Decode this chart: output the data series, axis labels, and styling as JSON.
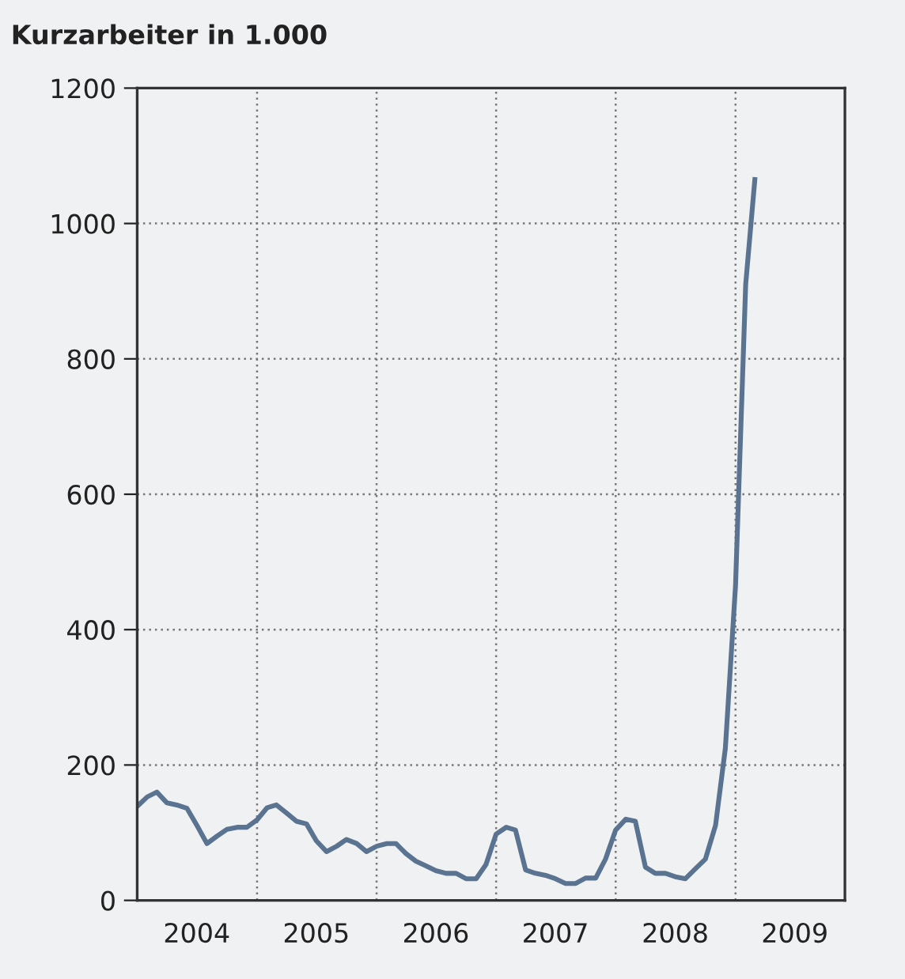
{
  "chart_data": {
    "type": "line",
    "title": "Kurzarbeiter in 1.000",
    "x": [
      "2004-01",
      "2004-02",
      "2004-03",
      "2004-04",
      "2004-05",
      "2004-06",
      "2004-07",
      "2004-08",
      "2004-09",
      "2004-10",
      "2004-11",
      "2004-12",
      "2005-01",
      "2005-02",
      "2005-03",
      "2005-04",
      "2005-05",
      "2005-06",
      "2005-07",
      "2005-08",
      "2005-09",
      "2005-10",
      "2005-11",
      "2005-12",
      "2006-01",
      "2006-02",
      "2006-03",
      "2006-04",
      "2006-05",
      "2006-06",
      "2006-07",
      "2006-08",
      "2006-09",
      "2006-10",
      "2006-11",
      "2006-12",
      "2007-01",
      "2007-02",
      "2007-03",
      "2007-04",
      "2007-05",
      "2007-06",
      "2007-07",
      "2007-08",
      "2007-09",
      "2007-10",
      "2007-11",
      "2007-12",
      "2008-01",
      "2008-02",
      "2008-03",
      "2008-04",
      "2008-05",
      "2008-06",
      "2008-07",
      "2008-08",
      "2008-09",
      "2008-10",
      "2008-11",
      "2008-12",
      "2009-01",
      "2009-02",
      "2009-03"
    ],
    "series": [
      {
        "color": "#5a7391",
        "values": [
          139,
          153,
          160,
          144,
          141,
          136,
          111,
          84,
          95,
          105,
          108,
          108,
          119,
          137,
          141,
          129,
          117,
          113,
          88,
          72,
          80,
          90,
          84,
          72,
          80,
          84,
          84,
          69,
          58,
          51,
          44,
          40,
          40,
          32,
          32,
          53,
          98,
          108,
          104,
          45,
          40,
          37,
          32,
          25,
          25,
          33,
          33,
          61,
          104,
          120,
          117,
          49,
          40,
          40,
          35,
          32,
          47,
          61,
          111,
          225,
          465,
          910,
          1065
        ]
      }
    ],
    "xlim": [
      "2004-01",
      "2009-12"
    ],
    "xticks": [
      {
        "value": "2004-07-01",
        "label": "2004"
      },
      {
        "value": "2005-01-01",
        "label": null
      },
      {
        "value": "2005-07-01",
        "label": "2005"
      },
      {
        "value": "2006-01-01",
        "label": null
      },
      {
        "value": "2006-07-01",
        "label": "2006"
      },
      {
        "value": "2007-01-01",
        "label": null
      },
      {
        "value": "2007-07-01",
        "label": "2007"
      },
      {
        "value": "2008-01-01",
        "label": null
      },
      {
        "value": "2008-07-01",
        "label": "2008"
      },
      {
        "value": "2009-01-01",
        "label": null
      },
      {
        "value": "2009-07-01",
        "label": "2009"
      }
    ],
    "ylim": [
      0,
      1200
    ],
    "yticks": [
      0,
      200,
      400,
      600,
      800,
      1000,
      1200
    ],
    "grid": true,
    "line_style": "solid",
    "marker": "none"
  }
}
